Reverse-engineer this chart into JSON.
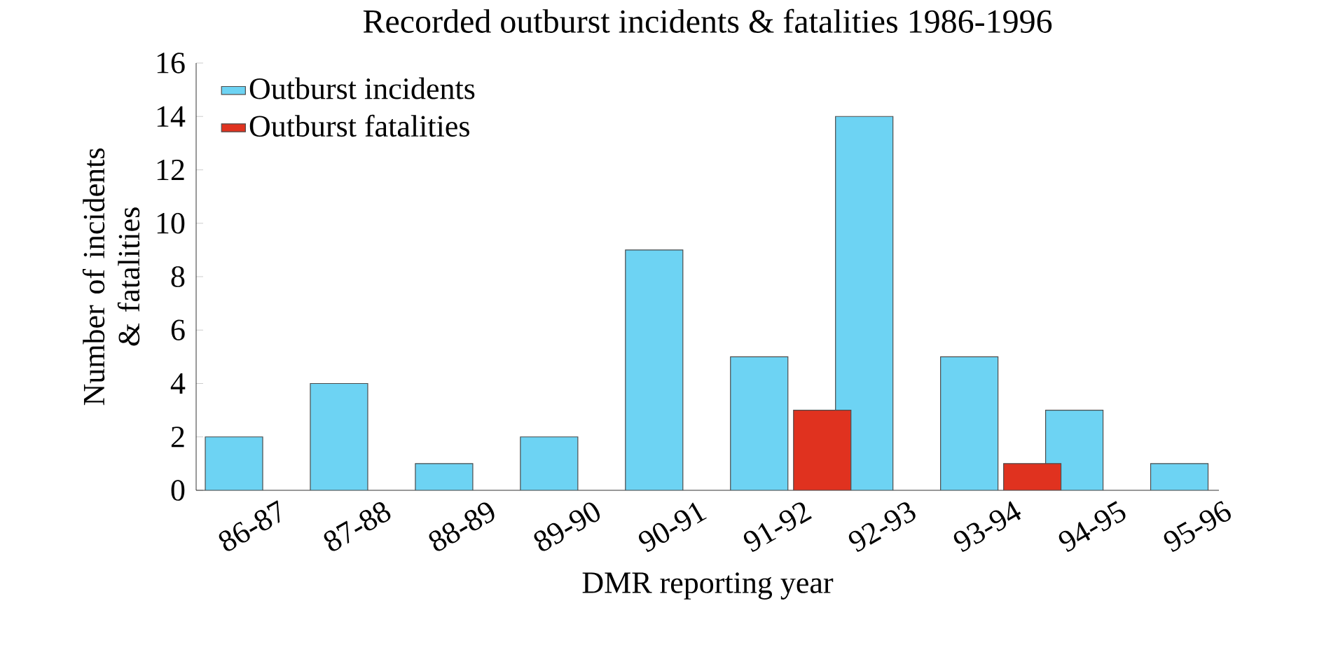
{
  "chart_data": {
    "type": "bar",
    "title": "Recorded outburst incidents & fatalities 1986-1996",
    "xlabel": "DMR reporting year",
    "ylabel": "Number of incidents & fatalities",
    "categories": [
      "86-87",
      "87-88",
      "88-89",
      "89-90",
      "90-91",
      "91-92",
      "92-93",
      "93-94",
      "94-95",
      "95-96"
    ],
    "series": [
      {
        "name": "Outburst incidents",
        "color": "#6dd3f3",
        "values": [
          2,
          4,
          1,
          2,
          9,
          5,
          14,
          5,
          3,
          1
        ]
      },
      {
        "name": "Outburst fatalities",
        "color": "#e0321f",
        "values": [
          null,
          null,
          null,
          null,
          null,
          3,
          null,
          1,
          null,
          null
        ]
      }
    ],
    "ylim": [
      0,
      16
    ],
    "yticks": [
      0,
      2,
      4,
      6,
      8,
      10,
      12,
      14,
      16
    ],
    "grid": false,
    "legend": "top left"
  }
}
